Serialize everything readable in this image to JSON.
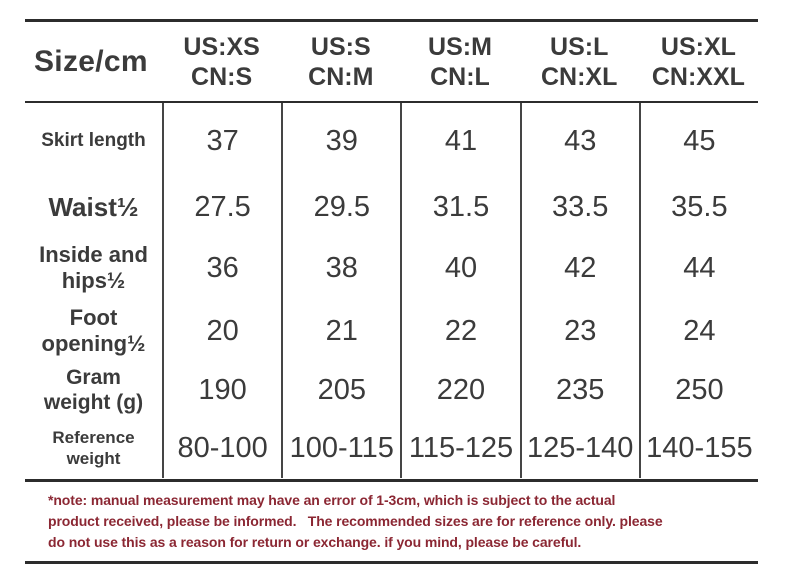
{
  "colors": {
    "background": "#ffffff",
    "text": "#3b3b3b",
    "rule": "#2c2c2c",
    "column_divider": "#454545",
    "note_text": "#8b2733"
  },
  "chart_data": {
    "type": "table",
    "title": "Size/cm",
    "corner_label": "Size/cm",
    "columns": [
      {
        "us": "US:XS",
        "cn": "CN:S"
      },
      {
        "us": "US:S",
        "cn": "CN:M"
      },
      {
        "us": "US:M",
        "cn": "CN:L"
      },
      {
        "us": "US:L",
        "cn": "CN:XL"
      },
      {
        "us": "US:XL",
        "cn": "CN:XXL"
      }
    ],
    "rows": [
      {
        "label": "Skirt length",
        "values": [
          "37",
          "39",
          "41",
          "43",
          "45"
        ]
      },
      {
        "label": "Waist½",
        "values": [
          "27.5",
          "29.5",
          "31.5",
          "33.5",
          "35.5"
        ]
      },
      {
        "label": "Inside and hips½",
        "values": [
          "36",
          "38",
          "40",
          "42",
          "44"
        ]
      },
      {
        "label": "Foot opening½",
        "values": [
          "20",
          "21",
          "22",
          "23",
          "24"
        ]
      },
      {
        "label": "Gram weight (g)",
        "values": [
          "190",
          "205",
          "220",
          "235",
          "250"
        ]
      },
      {
        "label": "Reference weight",
        "values": [
          "80-100",
          "100-115",
          "115-125",
          "125-140",
          "140-155"
        ]
      }
    ]
  },
  "note": {
    "lines": [
      "*note: manual measurement may have an error of 1-3cm, which is subject to the actual",
      "product received, please be informed.   The recommended sizes are for reference only. please",
      "do not use this as a reason for return or exchange. if you mind, please be careful."
    ]
  }
}
